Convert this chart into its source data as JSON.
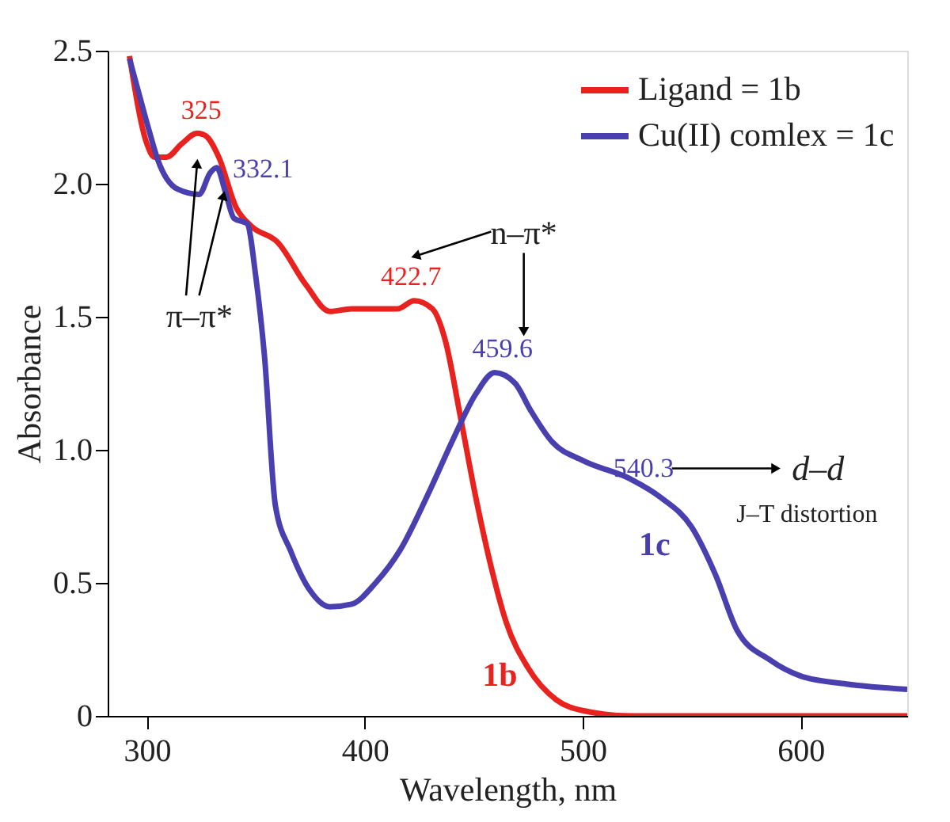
{
  "chart_data": {
    "type": "line",
    "xlabel": "Wavelength, nm",
    "ylabel": "Absorbance",
    "xlim": [
      282,
      649
    ],
    "xticks": [
      300,
      400,
      500,
      600
    ],
    "ylim": [
      0,
      2.5
    ],
    "yticks": [
      {
        "value": 0,
        "label": "0"
      },
      {
        "value": 0.5,
        "label": "0.5"
      },
      {
        "value": 1,
        "label": "1.0"
      },
      {
        "value": 1.5,
        "label": "1.5"
      },
      {
        "value": 2,
        "label": "2.0"
      },
      {
        "value": 2.5,
        "label": "2.5"
      }
    ],
    "grid": false,
    "legend": "top right",
    "line_style": "solid",
    "marker": "none",
    "series": [
      {
        "name": "Ligand = 1b",
        "color": "#e8231f",
        "x": [
          292,
          300,
          303.5,
          309,
          316,
          323,
          327,
          333,
          341,
          348,
          360,
          373,
          384,
          394,
          415,
          422.7,
          431,
          437,
          444,
          451,
          458,
          465,
          475,
          488,
          500,
          522,
          649
        ],
        "values": [
          2.48,
          2.15,
          2.1,
          2.1,
          2.15,
          2.19,
          2.18,
          2.1,
          1.91,
          1.84,
          1.78,
          1.62,
          1.52,
          1.53,
          1.53,
          1.56,
          1.53,
          1.41,
          1.12,
          0.82,
          0.56,
          0.35,
          0.18,
          0.06,
          0.02,
          0.0,
          0.0
        ]
      },
      {
        "name": "Cu(II) comlex = 1c",
        "color": "#4a3fae",
        "x": [
          292,
          295,
          301,
          305,
          314,
          324,
          329,
          332.1,
          336,
          340,
          346,
          350,
          354,
          359,
          366,
          375,
          384,
          394,
          405,
          416,
          430,
          440,
          451,
          459.6,
          469,
          476,
          486,
          500,
          522,
          536,
          550,
          561,
          571,
          586,
          600,
          621,
          649
        ],
        "values": [
          2.47,
          2.38,
          2.2,
          2.09,
          1.98,
          1.96,
          2.04,
          2.06,
          1.97,
          1.87,
          1.85,
          1.65,
          1.35,
          0.79,
          0.62,
          0.47,
          0.41,
          0.42,
          0.5,
          0.62,
          0.85,
          1.03,
          1.21,
          1.29,
          1.25,
          1.15,
          1.03,
          0.96,
          0.89,
          0.82,
          0.71,
          0.53,
          0.32,
          0.21,
          0.15,
          0.12,
          0.1
        ]
      }
    ],
    "annotations": [
      {
        "text": "325",
        "x": 325,
        "y": 2.19
      },
      {
        "text": "332.1",
        "x": 332.1,
        "y": 2.06
      },
      {
        "text": "422.7",
        "x": 422.7,
        "y": 1.56
      },
      {
        "text": "459.6",
        "x": 459.6,
        "y": 1.29
      },
      "540.3",
      {
        "text": "π–π*",
        "x": 335,
        "y": 1.95
      },
      "n–π*",
      "d–d",
      "J–T distortion",
      "1b",
      "1c"
    ]
  }
}
